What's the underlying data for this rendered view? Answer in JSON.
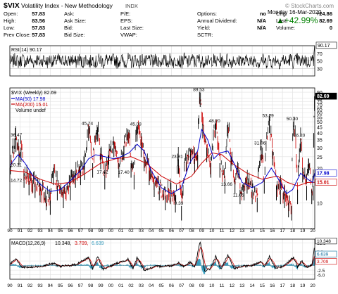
{
  "header": {
    "symbol": "$VIX",
    "name": "Volatility Index - New Methodology",
    "exchange": "INDX",
    "brand": "© StockCharts.com",
    "date": "Monday  16-Mar-2020",
    "change_pct": "▲+42.99%",
    "stats": [
      [
        {
          "l": "Open:",
          "v": "57.83"
        },
        {
          "l": "Ask:",
          "v": ""
        },
        {
          "l": "P/E:",
          "v": ""
        },
        {
          "l": "Options:",
          "v": "no"
        },
        {
          "l": "Chg:",
          "v": "+24.86"
        }
      ],
      [
        {
          "l": "High:",
          "v": "83.56"
        },
        {
          "l": "Ask Size:",
          "v": ""
        },
        {
          "l": "EPS:",
          "v": ""
        },
        {
          "l": "Annual Dividend:",
          "v": "N/A"
        },
        {
          "l": "Last:",
          "v": "82.69"
        }
      ],
      [
        {
          "l": "Low:",
          "v": "57.83"
        },
        {
          "l": "Bid:",
          "v": ""
        },
        {
          "l": "Last Size:",
          "v": ""
        },
        {
          "l": "Yield:",
          "v": "N/A"
        },
        {
          "l": "Volume:",
          "v": "0"
        }
      ],
      [
        {
          "l": "Prev Close:",
          "v": "57.83"
        },
        {
          "l": "Bid Size:",
          "v": ""
        },
        {
          "l": "VWAP:",
          "v": ""
        },
        {
          "l": "SCTR:",
          "v": ""
        },
        {
          "l": "",
          "v": ""
        }
      ]
    ]
  },
  "rsi_panel": {
    "legend": "RSI(14) 90.17",
    "last_value": "90.17",
    "ticks": [
      {
        "v": 70,
        "t": "70"
      },
      {
        "v": 50,
        "t": "50"
      },
      {
        "v": 30,
        "t": "30"
      }
    ],
    "overbought": 70,
    "oversold": 30
  },
  "colors": {
    "price": "#000000",
    "price_down": "#cc0000",
    "ma50": "#0000cc",
    "ma200": "#cc0000",
    "macd": "#000000",
    "signal": "#cc0000",
    "histogram": "#3399bb",
    "last_label_bg": "#000000"
  },
  "chart_data": {
    "type": "line",
    "title": "$VIX Volatility Index - New Methodology",
    "x_axis": {
      "year_labels": [
        "90",
        "91",
        "92",
        "93",
        "94",
        "95",
        "96",
        "97",
        "98",
        "99",
        "00",
        "01",
        "02",
        "03",
        "04",
        "05",
        "06",
        "07",
        "08",
        "09",
        "10",
        "11",
        "12",
        "13",
        "14",
        "15",
        "16",
        "17",
        "18",
        "19",
        "20"
      ],
      "range": [
        1990,
        2020.2
      ]
    },
    "price_panel": {
      "legend": {
        "price": "$VIX (Weekly) 82.69",
        "ma50": "MA(50) 17.98",
        "ma200": "MA(200) 15.01",
        "volume": "Volume undef"
      },
      "scale": "log",
      "y_range": [
        6,
        98
      ],
      "y_ticks": [
        {
          "v": 90,
          "t": "90"
        },
        {
          "v": 80,
          "t": "80"
        },
        {
          "v": 75,
          "t": "75"
        },
        {
          "v": 70,
          "t": "70"
        },
        {
          "v": 65,
          "t": "65"
        },
        {
          "v": 60,
          "t": "60"
        },
        {
          "v": 55,
          "t": "55"
        },
        {
          "v": 50,
          "t": "50"
        },
        {
          "v": 45,
          "t": "45"
        },
        {
          "v": 40,
          "t": "40"
        },
        {
          "v": 35,
          "t": "35"
        },
        {
          "v": 30,
          "t": "30"
        },
        {
          "v": 25,
          "t": "25"
        },
        {
          "v": 20,
          "t": "20"
        },
        {
          "v": 15,
          "t": "15"
        },
        {
          "v": 10,
          "t": "10"
        }
      ],
      "last_labels": [
        {
          "v": 82.69,
          "t": "82.69",
          "style": "dark"
        },
        {
          "v": 17.98,
          "t": "17.98",
          "style": "blue"
        },
        {
          "v": 15.01,
          "t": "15.01",
          "style": "red"
        }
      ],
      "annotations": [
        {
          "x": 1990.05,
          "y": 36.47,
          "t": "36.47"
        },
        {
          "x": 1990.0,
          "y": 20.11,
          "t": "20.11"
        },
        {
          "x": 1990.1,
          "y": 14.72,
          "t": "14.72"
        },
        {
          "x": 1997.8,
          "y": 45.74,
          "t": "45.74"
        },
        {
          "x": 1999.3,
          "y": 17.42,
          "t": "17.42"
        },
        {
          "x": 2002.6,
          "y": 45.08,
          "t": "45.08"
        },
        {
          "x": 2001.4,
          "y": 17.4,
          "t": "17.40"
        },
        {
          "x": 2006.7,
          "y": 23.81,
          "t": "23.81"
        },
        {
          "x": 2007.0,
          "y": 9.39,
          "t": "9.39"
        },
        {
          "x": 2008.85,
          "y": 89.53,
          "t": "89.53"
        },
        {
          "x": 2010.4,
          "y": 48.2,
          "t": "48.20"
        },
        {
          "x": 2011.6,
          "y": 13.66,
          "t": "13.66"
        },
        {
          "x": 2012.8,
          "y": 11.05,
          "t": "11.05"
        },
        {
          "x": 2014.9,
          "y": 31.06,
          "t": "31.06"
        },
        {
          "x": 2015.7,
          "y": 53.29,
          "t": "53.29"
        },
        {
          "x": 2018.1,
          "y": 50.3,
          "t": "50.30"
        },
        {
          "x": 2018.8,
          "y": 36.2,
          "t": "36.20"
        }
      ],
      "series_price": [
        [
          1990.0,
          20.1
        ],
        [
          1990.6,
          36.5
        ],
        [
          1990.9,
          28
        ],
        [
          1991.1,
          30
        ],
        [
          1991.4,
          18
        ],
        [
          1991.9,
          15.5
        ],
        [
          1992.5,
          14.7
        ],
        [
          1993.0,
          13.5
        ],
        [
          1993.6,
          11.5
        ],
        [
          1994.0,
          10.5
        ],
        [
          1994.3,
          19
        ],
        [
          1994.7,
          14
        ],
        [
          1995.3,
          12
        ],
        [
          1996.0,
          14
        ],
        [
          1996.5,
          18
        ],
        [
          1997.0,
          19
        ],
        [
          1997.4,
          21
        ],
        [
          1997.8,
          45.7
        ],
        [
          1998.2,
          22
        ],
        [
          1998.7,
          45
        ],
        [
          1999.0,
          26
        ],
        [
          1999.4,
          17.4
        ],
        [
          1999.8,
          26
        ],
        [
          2000.3,
          33
        ],
        [
          2000.8,
          22
        ],
        [
          2001.3,
          31
        ],
        [
          2001.7,
          43
        ],
        [
          2002.0,
          22
        ],
        [
          2002.3,
          17.4
        ],
        [
          2002.6,
          45
        ],
        [
          2003.0,
          33
        ],
        [
          2003.3,
          25
        ],
        [
          2003.8,
          19
        ],
        [
          2004.3,
          15
        ],
        [
          2004.8,
          14
        ],
        [
          2005.4,
          11.5
        ],
        [
          2005.9,
          13
        ],
        [
          2006.4,
          11
        ],
        [
          2006.7,
          23.8
        ],
        [
          2007.0,
          9.4
        ],
        [
          2007.5,
          25
        ],
        [
          2007.9,
          29
        ],
        [
          2008.3,
          24
        ],
        [
          2008.6,
          26
        ],
        [
          2008.85,
          89.5
        ],
        [
          2009.1,
          48
        ],
        [
          2009.5,
          30
        ],
        [
          2009.9,
          22
        ],
        [
          2010.4,
          48.2
        ],
        [
          2010.8,
          22
        ],
        [
          2011.3,
          16
        ],
        [
          2011.6,
          48
        ],
        [
          2011.9,
          25
        ],
        [
          2012.3,
          16
        ],
        [
          2012.6,
          22
        ],
        [
          2012.8,
          13
        ],
        [
          2013.2,
          14
        ],
        [
          2013.5,
          16
        ],
        [
          2014.0,
          13
        ],
        [
          2014.5,
          11.1
        ],
        [
          2014.9,
          31
        ],
        [
          2015.2,
          16
        ],
        [
          2015.7,
          53.3
        ],
        [
          2016.0,
          28
        ],
        [
          2016.4,
          14
        ],
        [
          2016.8,
          13
        ],
        [
          2017.2,
          12
        ],
        [
          2017.6,
          10
        ],
        [
          2017.9,
          9.4
        ],
        [
          2018.1,
          50.3
        ],
        [
          2018.5,
          13
        ],
        [
          2018.8,
          36.2
        ],
        [
          2019.0,
          20
        ],
        [
          2019.4,
          14
        ],
        [
          2019.6,
          24
        ],
        [
          2019.9,
          13
        ],
        [
          2020.05,
          14
        ],
        [
          2020.1,
          40
        ],
        [
          2020.18,
          82.69
        ]
      ],
      "series_ma50": [
        [
          1990.0,
          21
        ],
        [
          1990.8,
          26
        ],
        [
          1991.5,
          22
        ],
        [
          1992.3,
          17
        ],
        [
          1993.0,
          14.5
        ],
        [
          1994.0,
          12.5
        ],
        [
          1995.0,
          13
        ],
        [
          1996.0,
          15.5
        ],
        [
          1997.0,
          19
        ],
        [
          1997.8,
          24
        ],
        [
          1998.5,
          26
        ],
        [
          1999.4,
          25
        ],
        [
          2000.3,
          24
        ],
        [
          2001.0,
          25
        ],
        [
          2001.8,
          27
        ],
        [
          2002.6,
          32
        ],
        [
          2003.3,
          28
        ],
        [
          2004.0,
          19
        ],
        [
          2005.0,
          13.5
        ],
        [
          2006.0,
          12
        ],
        [
          2007.0,
          13.5
        ],
        [
          2007.8,
          22
        ],
        [
          2008.6,
          28
        ],
        [
          2009.0,
          43
        ],
        [
          2009.6,
          35
        ],
        [
          2010.2,
          24
        ],
        [
          2010.8,
          27
        ],
        [
          2011.6,
          28
        ],
        [
          2012.2,
          22
        ],
        [
          2013.0,
          15
        ],
        [
          2014.0,
          13.5
        ],
        [
          2015.0,
          15
        ],
        [
          2015.9,
          20
        ],
        [
          2016.6,
          16
        ],
        [
          2017.4,
          12
        ],
        [
          2018.0,
          13
        ],
        [
          2018.8,
          18
        ],
        [
          2019.5,
          16
        ],
        [
          2020.0,
          15
        ],
        [
          2020.18,
          17.98
        ]
      ],
      "series_ma200": [
        [
          1990.0,
          19
        ],
        [
          1991.5,
          18.5
        ],
        [
          1993.0,
          16
        ],
        [
          1994.5,
          14.5
        ],
        [
          1996.0,
          15
        ],
        [
          1997.5,
          18
        ],
        [
          1999.0,
          22
        ],
        [
          2000.5,
          24
        ],
        [
          2002.0,
          25
        ],
        [
          2003.5,
          22
        ],
        [
          2005.0,
          17
        ],
        [
          2006.5,
          14.5
        ],
        [
          2008.0,
          17
        ],
        [
          2009.0,
          22
        ],
        [
          2010.0,
          27
        ],
        [
          2011.0,
          26
        ],
        [
          2012.0,
          22
        ],
        [
          2013.5,
          18
        ],
        [
          2015.0,
          16
        ],
        [
          2016.5,
          17
        ],
        [
          2017.5,
          15
        ],
        [
          2018.5,
          14
        ],
        [
          2019.5,
          15
        ],
        [
          2020.18,
          15.01
        ]
      ]
    },
    "macd_panel": {
      "legend": "MACD(12,26,9) 10.348, 3.709, 6.639",
      "legend_parts": {
        "name": "MACD(12,26,9)",
        "macd": "10.348,",
        "signal": "3.709,",
        "hist": "6.639"
      },
      "y_range": [
        -7.5,
        14.5
      ],
      "y_ticks": [
        {
          "v": 12.5,
          "t": "12.5"
        },
        {
          "v": 7.5,
          "t": "7.5"
        },
        {
          "v": 2.5,
          "t": "2.5"
        },
        {
          "v": -2.5,
          "t": "-2.5"
        },
        {
          "v": -5.0,
          "t": "-5.0"
        }
      ],
      "last_labels": [
        {
          "v": 10.348,
          "t": "10.348",
          "style": "black"
        },
        {
          "v": 6.639,
          "t": "6.639",
          "style": "blue"
        },
        {
          "v": 3.709,
          "t": "3.709",
          "style": "red"
        }
      ],
      "series_macd": [
        [
          1990.0,
          1
        ],
        [
          1990.6,
          4
        ],
        [
          1991.2,
          -1
        ],
        [
          1992.0,
          -1
        ],
        [
          1993.0,
          -0.5
        ],
        [
          1994.3,
          1.2
        ],
        [
          1995.0,
          -0.5
        ],
        [
          1996.5,
          0.5
        ],
        [
          1997.8,
          4.5
        ],
        [
          1998.2,
          -2
        ],
        [
          1998.7,
          5
        ],
        [
          1999.2,
          -2
        ],
        [
          2000.5,
          1
        ],
        [
          2001.7,
          3.5
        ],
        [
          2002.2,
          -2
        ],
        [
          2002.6,
          4.5
        ],
        [
          2003.3,
          -2.5
        ],
        [
          2004.5,
          -0.5
        ],
        [
          2006.0,
          0
        ],
        [
          2006.7,
          1.5
        ],
        [
          2007.2,
          -0.5
        ],
        [
          2007.9,
          2
        ],
        [
          2008.3,
          -1
        ],
        [
          2008.85,
          13
        ],
        [
          2009.3,
          -3
        ],
        [
          2009.8,
          -2
        ],
        [
          2010.4,
          5
        ],
        [
          2010.9,
          -2
        ],
        [
          2011.6,
          5.5
        ],
        [
          2012.2,
          -1.5
        ],
        [
          2013.0,
          -0.5
        ],
        [
          2014.0,
          0
        ],
        [
          2014.9,
          2.5
        ],
        [
          2015.2,
          -1
        ],
        [
          2015.7,
          5
        ],
        [
          2016.3,
          -1.5
        ],
        [
          2017.0,
          -0.5
        ],
        [
          2018.1,
          4.5
        ],
        [
          2018.5,
          -1
        ],
        [
          2018.9,
          3
        ],
        [
          2019.3,
          -1
        ],
        [
          2019.9,
          0
        ],
        [
          2020.18,
          10.348
        ]
      ]
    }
  }
}
